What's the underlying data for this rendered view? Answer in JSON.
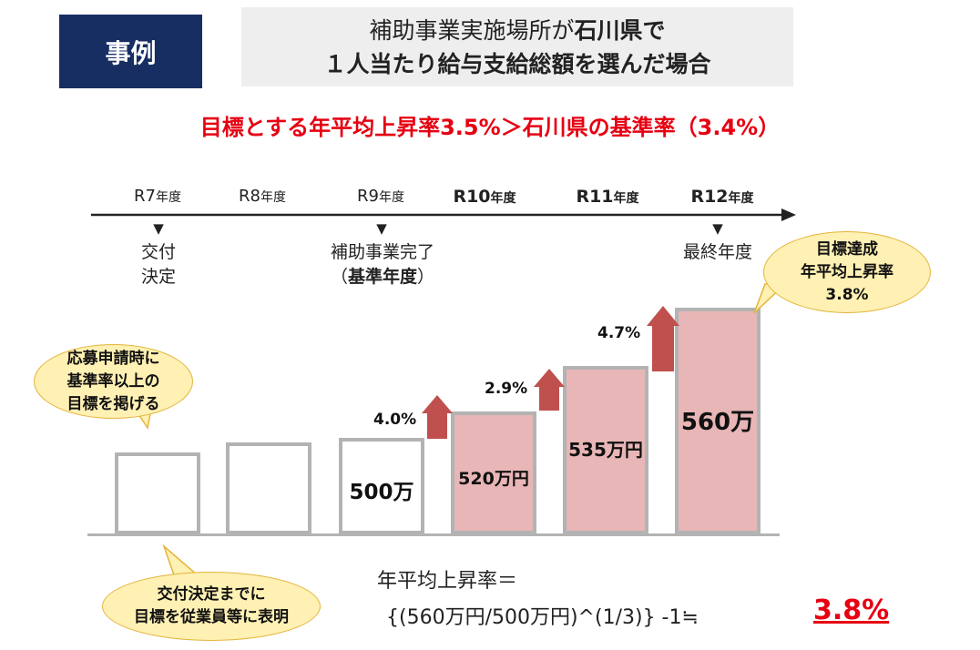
{
  "tag": "事例",
  "title": {
    "line1_pre": "補助事業実施場所が",
    "line1_bold": "石川県で",
    "line2": "１人当たり給与支給総額を選んだ場合"
  },
  "subtitle": "目標とする年平均上昇率3.5%＞石川県の基準率（3.4%）",
  "years": [
    {
      "main": "R7",
      "suffix": "年度"
    },
    {
      "main": "R8",
      "suffix": "年度"
    },
    {
      "main": "R9",
      "suffix": "年度"
    },
    {
      "main": "R10",
      "suffix": "年度"
    },
    {
      "main": "R11",
      "suffix": "年度"
    },
    {
      "main": "R12",
      "suffix": "年度"
    }
  ],
  "markers": {
    "triangle": "▼",
    "r7": {
      "line1": "交付",
      "line2": "決定"
    },
    "r9": {
      "line1": "補助事業完了",
      "line2_pre": "（",
      "line2_bold": "基準年度",
      "line2_post": "）"
    },
    "r12": {
      "line1": "最終年度"
    }
  },
  "bubbles": {
    "application": {
      "line1": "応募申請時に",
      "line2": "基準率以上の",
      "line3": "目標を掲げる"
    },
    "disclose": {
      "line1": "交付決定までに",
      "line2": "目標を従業員等に表明"
    },
    "achieve": {
      "line1": "目標達成",
      "line2": "年平均上昇率",
      "line3": "3.8%"
    }
  },
  "chart_data": {
    "type": "bar",
    "categories": [
      "R7年度",
      "R8年度",
      "R9年度",
      "R10年度",
      "R11年度",
      "R12年度"
    ],
    "values": [
      null,
      null,
      500,
      520,
      535,
      560
    ],
    "value_labels": [
      "",
      "",
      "500万",
      "520万円",
      "535万円",
      "560万"
    ],
    "growth_labels": [
      "",
      "",
      "",
      "4.0%",
      "2.9%",
      "4.7%"
    ],
    "colors": {
      "baseline": "#ffffff",
      "target": "#e8b6b6",
      "border": "#b3b3b3",
      "arrow": "#c0504d"
    }
  },
  "formula": {
    "line1": "年平均上昇率＝",
    "line2": "{(560万円/500万円)^(1/3)} -1≒",
    "result": "3.8%"
  }
}
